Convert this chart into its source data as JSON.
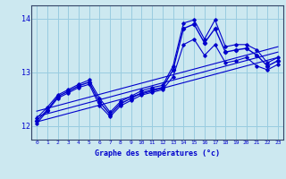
{
  "xlabel": "Graphe des températures (°c)",
  "bg_color": "#cce8f0",
  "grid_color": "#99cce0",
  "line_color": "#0000cc",
  "text_color": "#0000cc",
  "xlim": [
    -0.5,
    23.5
  ],
  "ylim": [
    11.75,
    14.25
  ],
  "yticks": [
    12,
    13,
    14
  ],
  "xticks": [
    0,
    1,
    2,
    3,
    4,
    5,
    6,
    7,
    8,
    9,
    10,
    11,
    12,
    13,
    14,
    15,
    16,
    17,
    18,
    19,
    20,
    21,
    22,
    23
  ],
  "hours": [
    0,
    1,
    2,
    3,
    4,
    5,
    6,
    7,
    8,
    9,
    10,
    11,
    12,
    13,
    14,
    15,
    16,
    17,
    18,
    19,
    20,
    21,
    22,
    23
  ],
  "temp_main": [
    12.1,
    12.3,
    12.55,
    12.65,
    12.75,
    12.82,
    12.45,
    12.22,
    12.42,
    12.52,
    12.62,
    12.68,
    12.72,
    13.05,
    13.82,
    13.9,
    13.55,
    13.82,
    13.38,
    13.42,
    13.45,
    13.32,
    13.12,
    13.22
  ],
  "temp_min": [
    12.05,
    12.28,
    12.52,
    12.62,
    12.72,
    12.78,
    12.38,
    12.18,
    12.38,
    12.48,
    12.58,
    12.63,
    12.68,
    12.92,
    13.52,
    13.62,
    13.32,
    13.52,
    13.18,
    13.22,
    13.28,
    13.12,
    13.05,
    13.15
  ],
  "temp_max": [
    12.15,
    12.35,
    12.58,
    12.68,
    12.78,
    12.86,
    12.52,
    12.26,
    12.46,
    12.56,
    12.66,
    12.72,
    12.76,
    13.12,
    13.92,
    13.98,
    13.62,
    13.98,
    13.48,
    13.52,
    13.52,
    13.42,
    13.18,
    13.28
  ],
  "trend1_x": [
    0,
    23
  ],
  "trend1_y": [
    12.08,
    13.28
  ],
  "trend2_x": [
    0,
    23
  ],
  "trend2_y": [
    12.18,
    13.38
  ],
  "trend3_x": [
    0,
    23
  ],
  "trend3_y": [
    12.28,
    13.48
  ]
}
